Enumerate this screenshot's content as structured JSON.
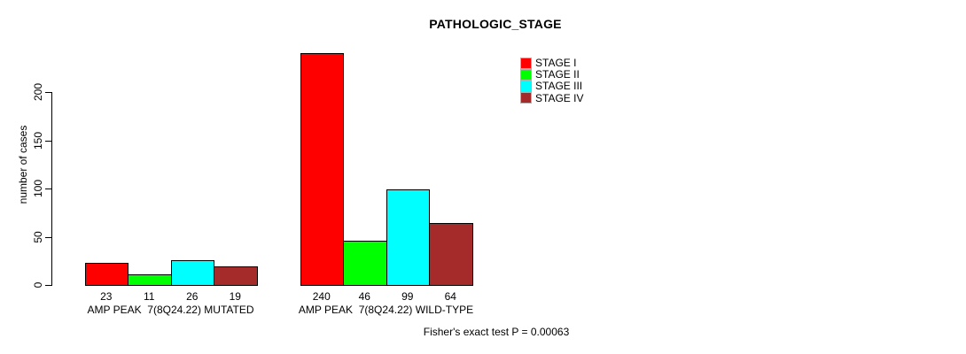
{
  "chart_data": {
    "type": "bar",
    "title": "PATHOLOGIC_STAGE",
    "ylabel": "number of cases",
    "xlabel": "",
    "ylim": [
      0,
      200
    ],
    "yticks": [
      0,
      50,
      100,
      150,
      200
    ],
    "grid": false,
    "legend_position": "top-right",
    "categories": [
      "AMP PEAK  7(8Q24.22) MUTATED",
      "AMP PEAK  7(8Q24.22) WILD-TYPE"
    ],
    "series": [
      {
        "name": "STAGE I",
        "color": "#ff0000",
        "values": [
          23,
          240
        ]
      },
      {
        "name": "STAGE II",
        "color": "#00ff00",
        "values": [
          11,
          46
        ]
      },
      {
        "name": "STAGE III",
        "color": "#00ffff",
        "values": [
          26,
          99
        ]
      },
      {
        "name": "STAGE IV",
        "color": "#a52a2a",
        "values": [
          19,
          64
        ]
      }
    ],
    "bar_value_labels": [
      [
        23,
        11,
        26,
        19
      ],
      [
        240,
        46,
        99,
        64
      ]
    ],
    "annotation": "Fisher's exact test P = 0.00063"
  }
}
